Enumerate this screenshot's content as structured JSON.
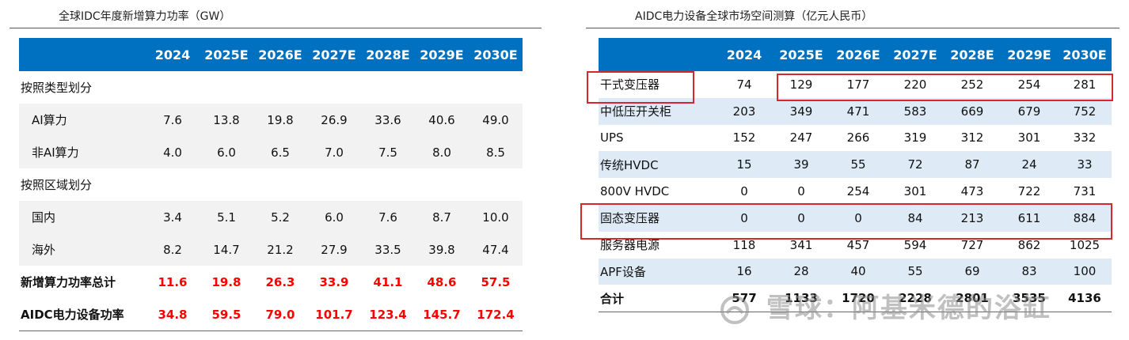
{
  "left": {
    "title": "全球IDC年度新增算力功率（GW）",
    "columns": [
      "",
      "2024",
      "2025E",
      "2026E",
      "2027E",
      "2028E",
      "2029E",
      "2030E"
    ],
    "rows": [
      {
        "label": "按照类型划分",
        "values": [
          "",
          "",
          "",
          "",
          "",
          "",
          ""
        ]
      },
      {
        "label": "AI算力",
        "values": [
          "7.6",
          "13.8",
          "19.8",
          "26.9",
          "33.6",
          "40.6",
          "49.0"
        ]
      },
      {
        "label": "非AI算力",
        "values": [
          "4.0",
          "6.0",
          "6.5",
          "7.0",
          "7.5",
          "8.0",
          "8.5"
        ]
      },
      {
        "label": "按照区域划分",
        "values": [
          "",
          "",
          "",
          "",
          "",
          "",
          ""
        ]
      },
      {
        "label": "国内",
        "values": [
          "3.4",
          "5.1",
          "5.2",
          "6.0",
          "7.6",
          "8.7",
          "10.0"
        ]
      },
      {
        "label": "海外",
        "values": [
          "8.2",
          "14.7",
          "21.2",
          "27.9",
          "33.5",
          "39.8",
          "47.4"
        ]
      },
      {
        "label": "新增算力功率总计",
        "values": [
          "11.6",
          "19.8",
          "26.3",
          "33.9",
          "41.1",
          "48.6",
          "57.5"
        ]
      },
      {
        "label": "AIDC电力设备功率",
        "values": [
          "34.8",
          "59.5",
          "79.0",
          "101.7",
          "123.4",
          "145.7",
          "172.4"
        ]
      }
    ]
  },
  "right": {
    "title": "AIDC电力设备全球市场空间测算（亿元人民币）",
    "columns": [
      "",
      "2024",
      "2025E",
      "2026E",
      "2027E",
      "2028E",
      "2029E",
      "2030E"
    ],
    "rows": [
      {
        "label": "干式变压器",
        "values": [
          "74",
          "129",
          "177",
          "220",
          "252",
          "254",
          "281"
        ]
      },
      {
        "label": "中低压开关柜",
        "values": [
          "203",
          "349",
          "471",
          "583",
          "669",
          "679",
          "752"
        ]
      },
      {
        "label": "UPS",
        "values": [
          "152",
          "247",
          "266",
          "319",
          "312",
          "301",
          "332"
        ]
      },
      {
        "label": "传统HVDC",
        "values": [
          "15",
          "39",
          "55",
          "72",
          "87",
          "24",
          "33"
        ]
      },
      {
        "label": "800V HVDC",
        "values": [
          "0",
          "0",
          "254",
          "301",
          "473",
          "722",
          "731"
        ]
      },
      {
        "label": "固态变压器",
        "values": [
          "0",
          "0",
          "0",
          "84",
          "213",
          "611",
          "884"
        ]
      },
      {
        "label": "服务器电源",
        "values": [
          "118",
          "341",
          "457",
          "594",
          "727",
          "862",
          "1025"
        ]
      },
      {
        "label": "APF设备",
        "values": [
          "16",
          "28",
          "40",
          "55",
          "69",
          "83",
          "100"
        ]
      },
      {
        "label": "合计",
        "values": [
          "577",
          "1133",
          "1720",
          "2228",
          "2801",
          "3535",
          "4136"
        ]
      }
    ]
  },
  "watermark": {
    "text": "雪球：阿基米德的浴缸"
  },
  "colors": {
    "header": "#0070c0",
    "highlight": "#d9262c",
    "total_text": "#ff0000"
  }
}
